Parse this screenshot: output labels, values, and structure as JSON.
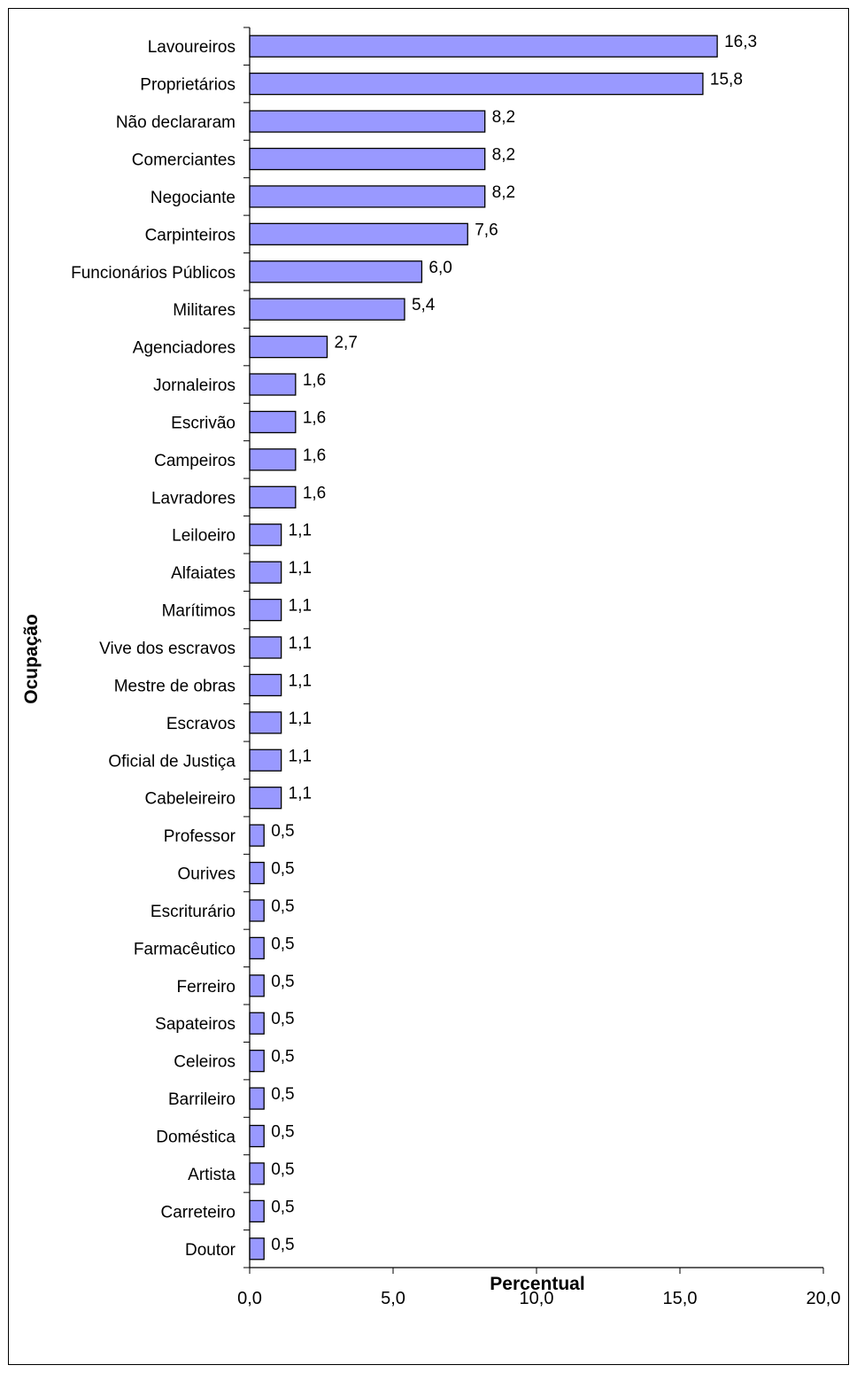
{
  "chart_data": {
    "type": "bar",
    "orientation": "horizontal",
    "categories": [
      "Lavoureiros",
      "Proprietários",
      "Não declararam",
      "Comerciantes",
      "Negociante",
      "Carpinteiros",
      "Funcionários Públicos",
      "Militares",
      "Agenciadores",
      "Jornaleiros",
      "Escrivão",
      "Campeiros",
      "Lavradores",
      "Leiloeiro",
      "Alfaiates",
      "Marítimos",
      "Vive dos escravos",
      "Mestre de obras",
      "Escravos",
      "Oficial de Justiça",
      "Cabeleireiro",
      "Professor",
      "Ourives",
      "Escriturário",
      "Farmacêutico",
      "Ferreiro",
      "Sapateiros",
      "Celeiros",
      "Barrileiro",
      "Doméstica",
      "Artista",
      "Carreteiro",
      "Doutor"
    ],
    "values": [
      16.3,
      15.8,
      8.2,
      8.2,
      8.2,
      7.6,
      6.0,
      5.4,
      2.7,
      1.6,
      1.6,
      1.6,
      1.6,
      1.1,
      1.1,
      1.1,
      1.1,
      1.1,
      1.1,
      1.1,
      1.1,
      0.5,
      0.5,
      0.5,
      0.5,
      0.5,
      0.5,
      0.5,
      0.5,
      0.5,
      0.5,
      0.5,
      0.5
    ],
    "value_labels": [
      "16,3",
      "15,8",
      "8,2",
      "8,2",
      "8,2",
      "7,6",
      "6,0",
      "5,4",
      "2,7",
      "1,6",
      "1,6",
      "1,6",
      "1,6",
      "1,1",
      "1,1",
      "1,1",
      "1,1",
      "1,1",
      "1,1",
      "1,1",
      "1,1",
      "0,5",
      "0,5",
      "0,5",
      "0,5",
      "0,5",
      "0,5",
      "0,5",
      "0,5",
      "0,5",
      "0,5",
      "0,5",
      "0,5"
    ],
    "xlabel": "Percentual",
    "ylabel": "Ocupação",
    "xlim": [
      0,
      20
    ],
    "xticks": [
      0,
      5,
      10,
      15,
      20
    ],
    "xtick_labels": [
      "0,0",
      "5,0",
      "10,0",
      "15,0",
      "20,0"
    ],
    "grid": false,
    "legend": "none",
    "bar_color": "#9999FF",
    "bar_edge_color": "#000000"
  }
}
